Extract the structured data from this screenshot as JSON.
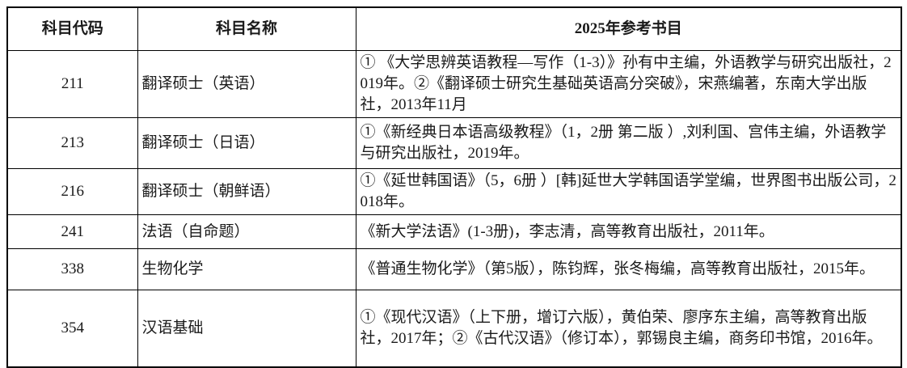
{
  "table": {
    "headers": {
      "code": "科目代码",
      "name": "科目名称",
      "books": "2025年参考书目"
    },
    "rows": [
      {
        "code": "211",
        "name": "翻译硕士（英语）",
        "books": "① 《大学思辨英语教程—写作（1-3）》孙有中主编，外语教学与研究出版社，2019年。②《翻译硕士研究生基础英语高分突破》，宋燕编著，东南大学出版社，2013年11月"
      },
      {
        "code": "213",
        "name": "翻译硕士（日语）",
        "books": "①《新经典日本语高级教程》（1，2册 第二版 ）,刘利国、宫伟主编，外语教学与研究出版社，2019年。"
      },
      {
        "code": "216",
        "name": "翻译硕士（朝鲜语）",
        "books": "①《延世韩国语》（5，6册 ）[韩]延世大学韩国语学堂编，世界图书出版公司，2018年。"
      },
      {
        "code": "241",
        "name": "法语（自命题）",
        "books": "《新大学法语》(1-3册)，李志清，高等教育出版社，2011年。"
      },
      {
        "code": "338",
        "name": "生物化学",
        "books": "《普通生物化学》（第5版），陈钧辉，张冬梅编，高等教育出版社，2015年。"
      },
      {
        "code": "354",
        "name": "汉语基础",
        "books": "①《现代汉语》（上下册，增订六版），黄伯荣、廖序东主编，高等教育出版社，2017年；②《古代汉语》（修订本），郭锡良主编，商务印书馆，2016年。"
      }
    ],
    "colors": {
      "border": "#000000",
      "text": "#1a1a1a",
      "background": "#ffffff"
    }
  }
}
